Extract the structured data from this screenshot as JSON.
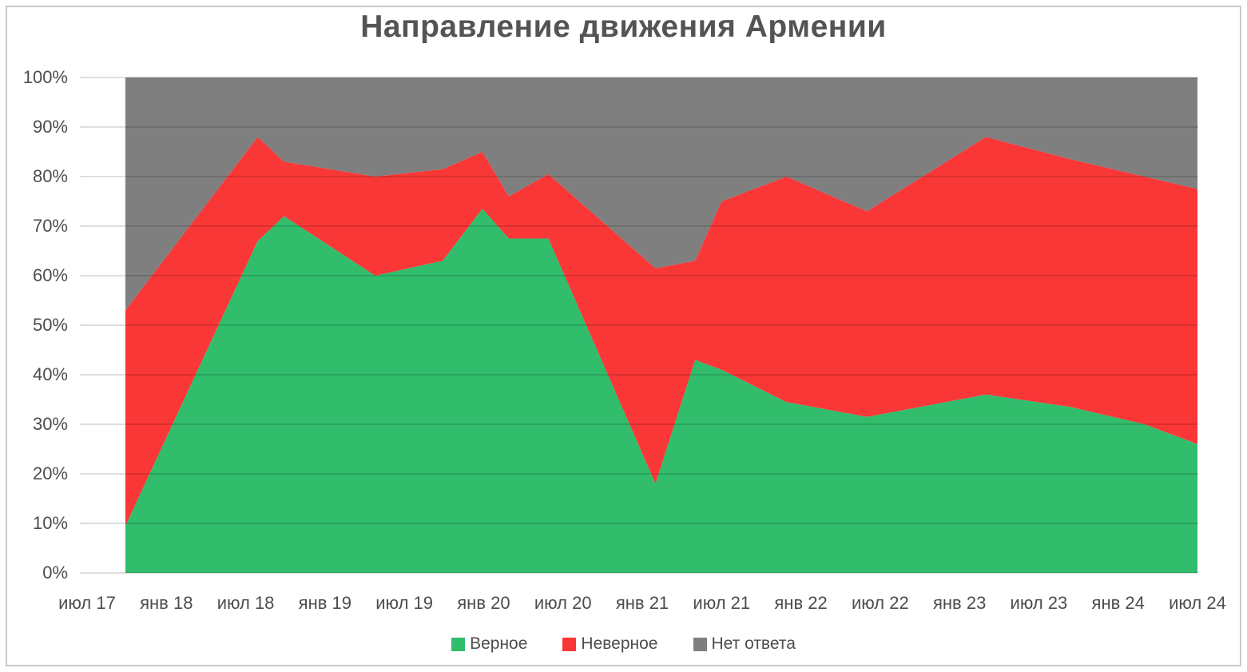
{
  "title": "Направление движения Армении",
  "chart_data": {
    "type": "area",
    "stacked": true,
    "stacking": "percent",
    "title": "Направление движения Армении",
    "grid": "horizontal",
    "legend_position": "bottom",
    "y_axis": {
      "min": 0,
      "max": 100,
      "tick_step": 10,
      "tick_labels": [
        "0%",
        "10%",
        "20%",
        "30%",
        "40%",
        "50%",
        "60%",
        "70%",
        "80%",
        "90%",
        "100%"
      ]
    },
    "x_axis": {
      "range_note": "time axis from Jul 2017 to Jul 2024, labels every 6 months",
      "tick_labels": [
        "июл 17",
        "янв 18",
        "июл 18",
        "янв 19",
        "июл 19",
        "янв 20",
        "июл 20",
        "янв 21",
        "июл 21",
        "янв 22",
        "июл 22",
        "янв 23",
        "июл 23",
        "янв 24",
        "июл 24"
      ],
      "tick_months": [
        0,
        6,
        12,
        18,
        24,
        30,
        36,
        42,
        48,
        54,
        60,
        66,
        72,
        78,
        84
      ],
      "total_months": 84
    },
    "points_x_months_after_jul_2017": [
      2.9,
      12.9,
      14.9,
      21.8,
      26.9,
      29.9,
      31.9,
      34.9,
      43.0,
      46.0,
      48.0,
      52.9,
      59.0,
      68.0,
      74.4,
      80.0,
      84.0
    ],
    "series": [
      {
        "name": "Верное",
        "color": "#31BD6C",
        "values": [
          9.5,
          67,
          72,
          60,
          63,
          73.5,
          67.5,
          67.5,
          18,
          43,
          41,
          34.5,
          31.5,
          36,
          33.5,
          30,
          26
        ]
      },
      {
        "name": "Неверное",
        "color": "#FA3737",
        "values": [
          43.5,
          21,
          11,
          20,
          18.5,
          11.5,
          8.5,
          13,
          43.5,
          20,
          34,
          45.5,
          41.5,
          52,
          50,
          50,
          51.5
        ]
      },
      {
        "name": "Нет ответа",
        "color": "#7F7F7F",
        "values": [
          47,
          12,
          17,
          20,
          18.5,
          15,
          24,
          19.5,
          38.5,
          37,
          25,
          20,
          27,
          12,
          16.5,
          20,
          22.5
        ]
      }
    ]
  }
}
